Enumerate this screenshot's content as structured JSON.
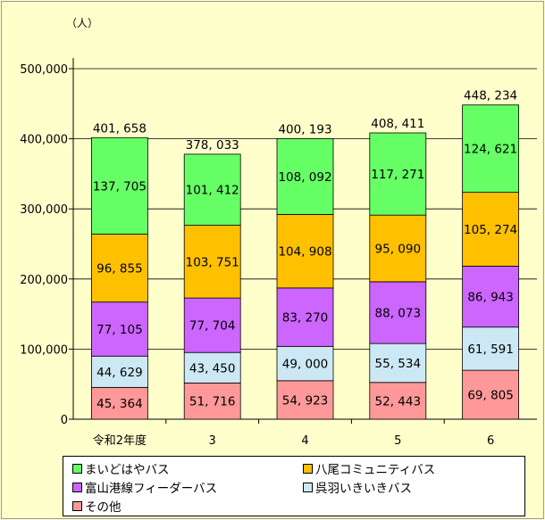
{
  "chart_data": {
    "type": "bar",
    "stacked": true,
    "unit": "（人）",
    "categories": [
      "令和2年度",
      "3",
      "4",
      "5",
      "6"
    ],
    "series": [
      {
        "name": "その他",
        "color": "#ff9999",
        "values": [
          45364,
          51716,
          54923,
          52443,
          69805
        ]
      },
      {
        "name": "呉羽いきいきバス",
        "color": "#cce8f4",
        "values": [
          44629,
          43450,
          49000,
          55534,
          61591
        ]
      },
      {
        "name": "富山港線フィーダーバス",
        "color": "#cc66ff",
        "values": [
          77105,
          77704,
          83270,
          88073,
          86943
        ]
      },
      {
        "name": "八尾コミュニティバス",
        "color": "#ffc000",
        "values": [
          96855,
          103751,
          104908,
          95090,
          105274
        ]
      },
      {
        "name": "まいどはやバス",
        "color": "#66ff66",
        "values": [
          137705,
          101412,
          108092,
          117271,
          124621
        ]
      }
    ],
    "totals": [
      401658,
      378033,
      400193,
      408411,
      448234
    ],
    "ylim": [
      0,
      500000
    ],
    "yticks": [
      0,
      100000,
      200000,
      300000,
      400000,
      500000
    ],
    "grid": true,
    "legend_position": "bottom",
    "legend_order": [
      "まいどはやバス",
      "八尾コミュニティバス",
      "富山港線フィーダーバス",
      "呉羽いきいきバス",
      "その他"
    ]
  }
}
